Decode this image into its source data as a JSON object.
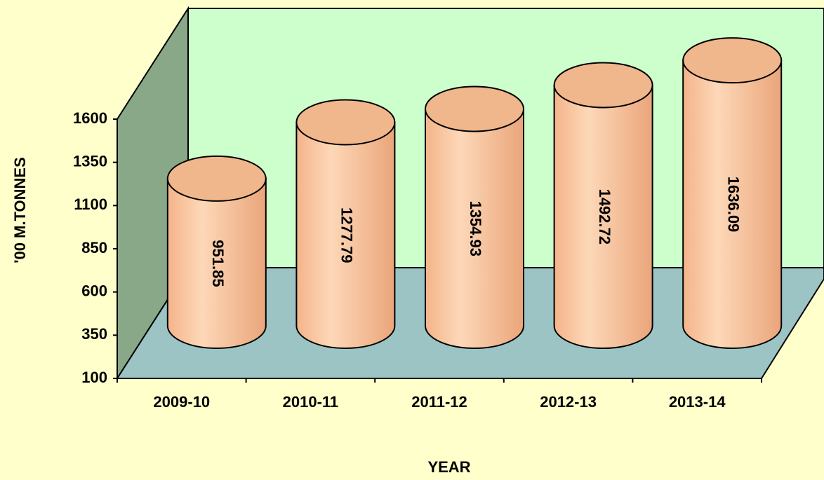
{
  "chart_data": {
    "type": "bar",
    "categories": [
      "2009-10",
      "2010-11",
      "2011-12",
      "2012-13",
      "2013-14"
    ],
    "values": [
      951.85,
      1277.79,
      1354.93,
      1492.72,
      1636.09
    ],
    "color": "#f9c49c",
    "xlabel": "YEAR",
    "ylabel": "'00 M.TONNES",
    "ylim": [
      100,
      1600
    ],
    "yticks": [
      100,
      350,
      600,
      850,
      1100,
      1350,
      1600
    ]
  }
}
